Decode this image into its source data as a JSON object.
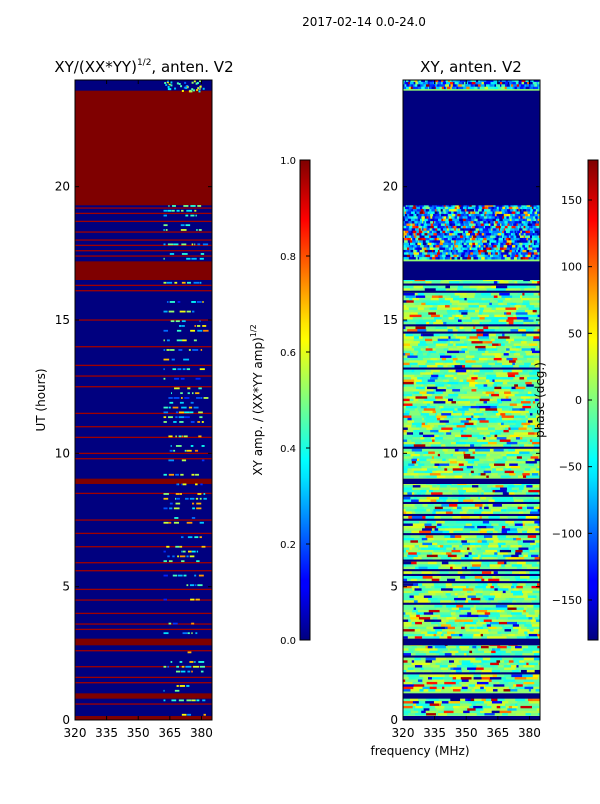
{
  "figure_title": "2017-02-14 0.0-24.0",
  "colors": {
    "jet_dark_blue": "#00007f",
    "jet_blue": "#0000ff",
    "jet_cyan": "#00e5ff",
    "jet_green": "#7fff7f",
    "jet_yellow": "#ffe500",
    "jet_red": "#ff0000",
    "jet_dark_red": "#7f0000"
  },
  "chart_data": [
    {
      "type": "heatmap",
      "panel": "left",
      "title_main": "XY/(XX*YY)",
      "title_sup": "1/2",
      "title_tail": ", anten. V2",
      "xlabel": "",
      "ylabel": "UT (hours)",
      "xlim": [
        320,
        385
      ],
      "ylim": [
        0,
        24
      ],
      "xticks": [
        320,
        335,
        350,
        365,
        380
      ],
      "yticks": [
        0,
        5,
        10,
        15,
        20
      ],
      "colormap": "jet",
      "colorbar": {
        "label_main": "XY amp. / (XX*YY amp)",
        "label_sup": "1/2",
        "range": [
          0.0,
          1.0
        ],
        "ticks": [
          "0.0",
          "0.2",
          "0.4",
          "0.6",
          "0.8",
          "1.0"
        ]
      },
      "full_bands_hours": [
        [
          17.2,
          16.5
        ],
        [
          23.6,
          19.3
        ],
        [
          9.05,
          8.85
        ],
        [
          3.05,
          2.8
        ],
        [
          1.0,
          0.8
        ],
        [
          0.15,
          0.0
        ]
      ],
      "thin_lines_hours": [
        19.2,
        19.0,
        18.7,
        18.3,
        18.0,
        17.8,
        17.6,
        17.4,
        16.3,
        16.1,
        15.0,
        14.0,
        13.3,
        12.9,
        12.5,
        11.5,
        11.0,
        10.6,
        10.0,
        9.8,
        8.5,
        7.5,
        7.0,
        6.5,
        5.9,
        5.6,
        4.9,
        4.5,
        4.0,
        3.6,
        3.4,
        2.6,
        2.0,
        1.6,
        1.4,
        0.6
      ],
      "active_band_mhz": [
        362,
        381
      ]
    },
    {
      "type": "heatmap",
      "panel": "right",
      "title": "XY, anten. V2",
      "xlabel": "frequency (MHz)",
      "ylabel": "",
      "xlim": [
        320,
        385
      ],
      "ylim": [
        0,
        24
      ],
      "xticks": [
        320,
        335,
        350,
        365,
        380
      ],
      "yticks": [
        0,
        5,
        10,
        15,
        20
      ],
      "colormap": "jet",
      "colorbar": {
        "label": "phase (deg.)",
        "range": [
          -180,
          180
        ],
        "ticks": [
          "150",
          "100",
          "50",
          "0",
          "−50",
          "−100",
          "−150"
        ]
      },
      "blank_bands_hours": [
        [
          23.6,
          19.3
        ],
        [
          17.2,
          16.5
        ],
        [
          9.05,
          8.85
        ],
        [
          3.05,
          2.8
        ],
        [
          1.0,
          0.8
        ],
        [
          0.15,
          0.0
        ]
      ],
      "noisy_band_hours": [
        19.3,
        17.2
      ],
      "top_noisy_band_hours": [
        24.0,
        23.6
      ]
    }
  ]
}
